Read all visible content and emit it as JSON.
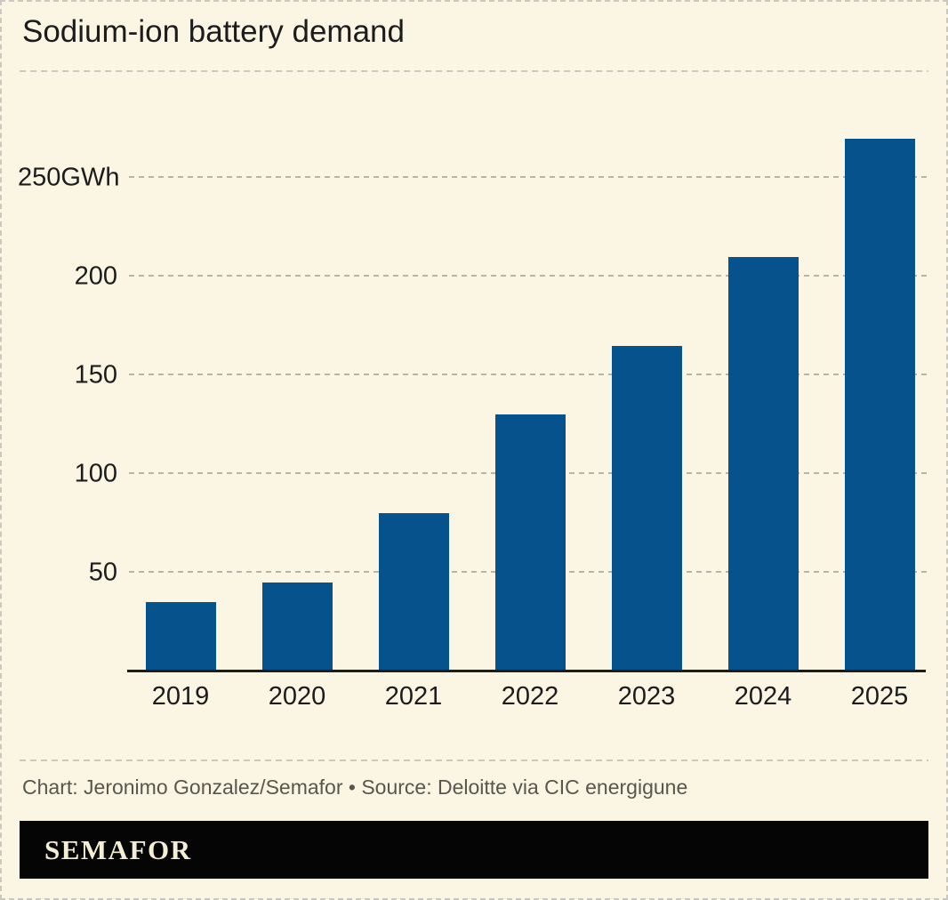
{
  "page": {
    "title": "Sodium-ion battery demand",
    "caption": "Chart: Jeronimo Gonzalez/Semafor • Source: Deloitte via CIC energigune",
    "logo": "SEMAFOR"
  },
  "colors": {
    "background": "#faf6e3",
    "border": "#c9c9c0",
    "separator": "#c9c9bf",
    "gridline": "#b5b5ac",
    "bar": "#05528d",
    "ink": "#1c1c1c",
    "caption": "#57574f",
    "banner_bg": "#050505",
    "banner_text": "#f5eed6"
  },
  "chart_data": {
    "type": "bar",
    "title": "Sodium-ion battery demand",
    "categories": [
      "2019",
      "2020",
      "2021",
      "2022",
      "2023",
      "2024",
      "2025"
    ],
    "values": [
      35,
      45,
      80,
      130,
      165,
      210,
      270
    ],
    "unit": "GWh",
    "xlabel": "",
    "ylabel": "",
    "ylim": [
      0,
      280
    ],
    "yticks": [
      {
        "value": 50,
        "label": "50"
      },
      {
        "value": 100,
        "label": "100"
      },
      {
        "value": 150,
        "label": "150"
      },
      {
        "value": 200,
        "label": "200"
      },
      {
        "value": 250,
        "label": "250GWh"
      }
    ],
    "grid": "horizontal-dashed",
    "legend": "none",
    "bar_color": "#05528d"
  }
}
